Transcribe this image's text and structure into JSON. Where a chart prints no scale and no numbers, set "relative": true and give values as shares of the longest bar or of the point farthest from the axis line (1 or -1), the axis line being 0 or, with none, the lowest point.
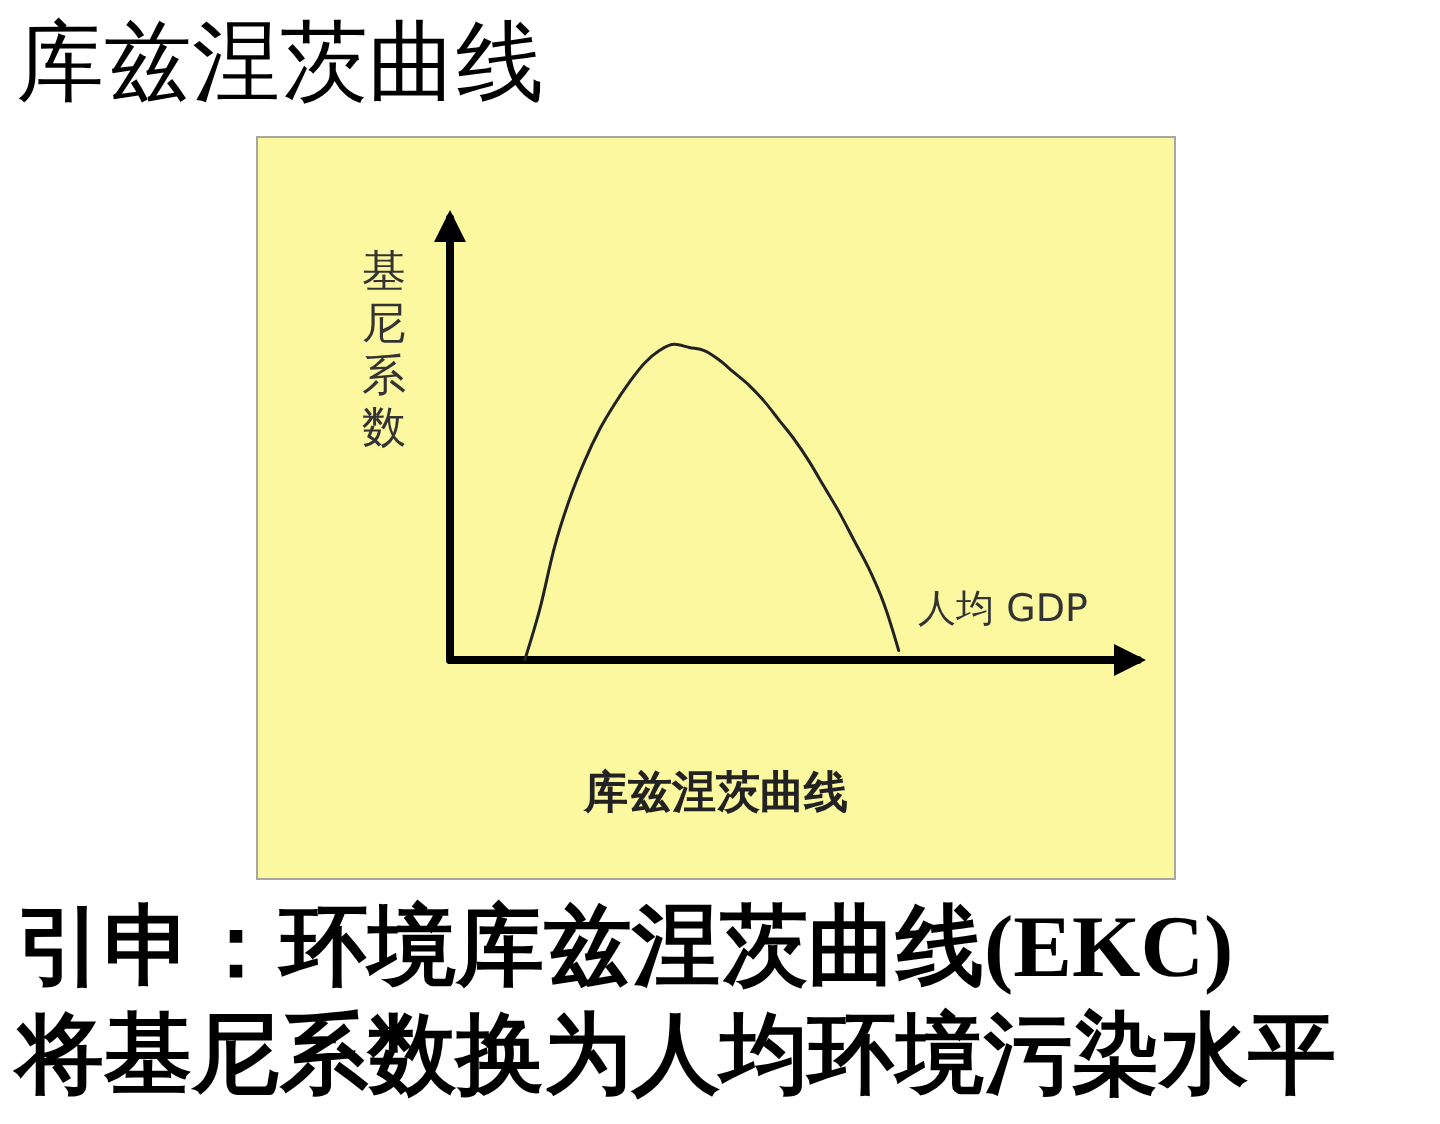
{
  "chart_data": {
    "type": "line",
    "title": "库兹涅茨曲线",
    "subtitle": "库兹涅茨曲线",
    "xlabel": "人均 GDP",
    "ylabel": "基尼系数",
    "annotations": [
      "引申：环境库兹涅茨曲线(EKC)",
      "将基尼系数换为人均环境污染水平"
    ],
    "relative": true,
    "marker": "none",
    "categories": [
      null,
      null,
      null,
      null,
      null,
      null,
      null,
      null,
      null,
      null,
      null,
      null,
      null,
      null,
      null,
      null,
      null,
      null,
      null,
      null,
      null,
      null,
      null,
      null,
      null,
      null,
      null,
      null,
      null,
      null,
      null,
      null,
      null,
      null,
      null,
      null,
      null,
      null,
      null,
      null,
      null,
      null,
      null,
      null,
      null,
      null,
      null
    ],
    "series": [
      {
        "color": "#222222",
        "values": [
          null,
          null,
          null,
          null,
          null,
          0,
          0.16,
          0.36,
          0.51,
          0.63,
          0.73,
          0.81,
          0.88,
          0.94,
          0.98,
          1,
          0.99,
          0.98,
          0.95,
          0.91,
          0.87,
          0.82,
          0.76,
          0.7,
          0.63,
          0.55,
          0.47,
          0.38,
          0.29,
          0.18,
          0.03,
          null,
          null,
          null,
          null,
          null,
          null,
          null,
          null,
          null,
          null,
          null,
          null,
          null,
          null,
          null,
          null
        ]
      }
    ]
  }
}
